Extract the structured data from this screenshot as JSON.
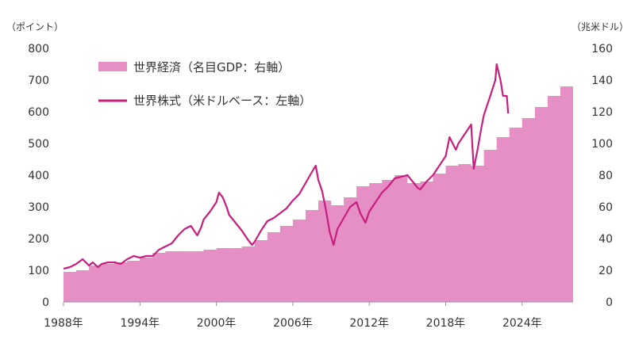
{
  "chart_data": {
    "type": "area+line",
    "title": "",
    "left_axis": {
      "unit_label": "（ポイント）",
      "min": 0,
      "max": 800,
      "ticks": [
        0,
        100,
        200,
        300,
        400,
        500,
        600,
        700,
        800
      ]
    },
    "right_axis": {
      "unit_label": "（兆米ドル）",
      "min": 0,
      "max": 160,
      "ticks": [
        0,
        20,
        40,
        60,
        80,
        100,
        120,
        140,
        160
      ]
    },
    "x_axis": {
      "min": 1988,
      "max": 2028,
      "tick_values": [
        1988,
        1994,
        2000,
        2006,
        2012,
        2018,
        2024
      ],
      "tick_labels": [
        "1988年",
        "1994年",
        "2000年",
        "2006年",
        "2012年",
        "2018年",
        "2024年"
      ]
    },
    "grid": false,
    "legend": {
      "placement": "top-left",
      "entries": [
        {
          "label": "世界経済（名目GDP：右軸）",
          "kind": "area",
          "color": "#e68fc4"
        },
        {
          "label": "世界株式（米ドルベース：左軸）",
          "kind": "line",
          "color": "#c71f7e"
        }
      ]
    },
    "series": [
      {
        "name": "世界経済（名目GDP：右軸）",
        "axis": "right",
        "kind": "step-area",
        "color": "#e68fc4",
        "years": [
          1988,
          1989,
          1990,
          1991,
          1992,
          1993,
          1994,
          1995,
          1996,
          1997,
          1998,
          1999,
          2000,
          2001,
          2002,
          2003,
          2004,
          2005,
          2006,
          2007,
          2008,
          2009,
          2010,
          2011,
          2012,
          2013,
          2014,
          2015,
          2016,
          2017,
          2018,
          2019,
          2020,
          2021,
          2022,
          2023,
          2024,
          2025,
          2026,
          2027
        ],
        "values": [
          19,
          20,
          23,
          24,
          25,
          26,
          28,
          31,
          32,
          32,
          32,
          33,
          34,
          34,
          35,
          39,
          44,
          48,
          52,
          58,
          64,
          61,
          66,
          73,
          75,
          77,
          80,
          75,
          76,
          81,
          86,
          87,
          86,
          96,
          104,
          110,
          116,
          123,
          130,
          136
        ]
      },
      {
        "name": "世界株式（米ドルベース：左軸）",
        "axis": "left",
        "kind": "line",
        "color": "#c71f7e",
        "x": [
          1988.0,
          1988.5,
          1989.0,
          1989.5,
          1990.0,
          1990.3,
          1990.7,
          1991.0,
          1991.5,
          1992.0,
          1992.5,
          1993.0,
          1993.5,
          1994.0,
          1994.5,
          1995.0,
          1995.5,
          1996.0,
          1996.5,
          1997.0,
          1997.5,
          1998.0,
          1998.5,
          1998.8,
          1999.0,
          1999.5,
          2000.0,
          2000.2,
          2000.5,
          2000.8,
          2001.0,
          2001.5,
          2001.8,
          2002.0,
          2002.5,
          2002.8,
          2003.0,
          2003.5,
          2004.0,
          2004.5,
          2005.0,
          2005.5,
          2006.0,
          2006.5,
          2007.0,
          2007.5,
          2007.8,
          2008.0,
          2008.3,
          2008.6,
          2008.9,
          2009.2,
          2009.5,
          2010.0,
          2010.5,
          2011.0,
          2011.3,
          2011.7,
          2012.0,
          2012.5,
          2013.0,
          2013.5,
          2014.0,
          2014.5,
          2015.0,
          2015.5,
          2015.8,
          2016.0,
          2016.5,
          2017.0,
          2017.5,
          2018.0,
          2018.3,
          2018.8,
          2019.0,
          2019.5,
          2020.0,
          2020.2,
          2020.5,
          2020.8,
          2021.0,
          2021.5,
          2021.9,
          2022.0,
          2022.3,
          2022.5,
          2022.8,
          2022.9
        ],
        "values": [
          105,
          110,
          120,
          135,
          115,
          125,
          110,
          120,
          125,
          125,
          120,
          135,
          145,
          140,
          145,
          145,
          165,
          175,
          185,
          210,
          230,
          240,
          210,
          235,
          260,
          285,
          315,
          345,
          330,
          300,
          275,
          250,
          235,
          225,
          195,
          180,
          190,
          225,
          255,
          265,
          280,
          295,
          320,
          340,
          375,
          410,
          430,
          385,
          350,
          290,
          220,
          180,
          230,
          265,
          300,
          315,
          280,
          250,
          285,
          315,
          345,
          365,
          390,
          395,
          400,
          375,
          360,
          355,
          380,
          400,
          430,
          460,
          520,
          480,
          500,
          530,
          560,
          420,
          480,
          550,
          590,
          650,
          700,
          750,
          700,
          650,
          650,
          595
        ]
      }
    ]
  }
}
